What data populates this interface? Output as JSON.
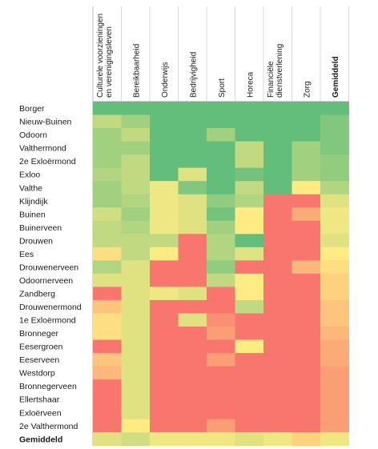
{
  "chart_data": {
    "type": "heatmap",
    "title": "",
    "columns": [
      [
        "Culturele voorzieningen",
        "en verenigingsleven"
      ],
      [
        "Bereikbaarheid"
      ],
      [
        "Onderwijs"
      ],
      [
        "Bedrijvigheid"
      ],
      [
        "Sport"
      ],
      [
        "Horeca"
      ],
      [
        "Financiële",
        "dienstverlening"
      ],
      [
        "Zorg"
      ],
      [
        "Gemiddeld"
      ]
    ],
    "rows": [
      "Borger",
      "Nieuw-Buinen",
      "Odoorn",
      "Valthermond",
      "2e Exloërmond",
      "Exloo",
      "Valthe",
      "Klijndijk",
      "Buinen",
      "Buinerveen",
      "Drouwen",
      "Ees",
      "Drouwenerveen",
      "Odoornerveen",
      "Zandberg",
      "Drouwenermond",
      "1e Exloërmond",
      "Bronneger",
      "Eesergroen",
      "Eeserveen",
      "Westdorp",
      "Bronnegerveen",
      "Ellertshaar",
      "Exloërveen",
      "2e Valthermond",
      "Gemiddeld"
    ],
    "bold_column": "Gemiddeld",
    "bold_row": "Gemiddeld",
    "color_scale": {
      "low": "#F8696B",
      "mid": "#FFEB84",
      "high": "#63BE7B",
      "range": [
        0,
        10
      ]
    },
    "values": [
      [
        10,
        10,
        10,
        10,
        10,
        10,
        10,
        10,
        10
      ],
      [
        7,
        8,
        10,
        10,
        10,
        10,
        10,
        10,
        9
      ],
      [
        8,
        7,
        10,
        10,
        8,
        10,
        10,
        10,
        9
      ],
      [
        8,
        8,
        10,
        10,
        10,
        7,
        10,
        8,
        9
      ],
      [
        8,
        7,
        10,
        10,
        10,
        7,
        10,
        8,
        8.5
      ],
      [
        7.5,
        7,
        10,
        6,
        10,
        9.5,
        10,
        8,
        8.5
      ],
      [
        8,
        7,
        5.5,
        9,
        10,
        7,
        10,
        5,
        7.5
      ],
      [
        8,
        7.5,
        5.5,
        6,
        8.5,
        7.5,
        0.5,
        0.5,
        6
      ],
      [
        6.5,
        8,
        5.5,
        6,
        9.5,
        5,
        0.5,
        2.5,
        5.5
      ],
      [
        7,
        7.5,
        5.5,
        6,
        8,
        5,
        0.5,
        0.5,
        5.5
      ],
      [
        7,
        7,
        7,
        0.5,
        7.5,
        10,
        0.5,
        0.5,
        6
      ],
      [
        4.5,
        7,
        5,
        0.5,
        7.5,
        6,
        0.5,
        0.5,
        5
      ],
      [
        7.5,
        6,
        0.5,
        0.5,
        8.5,
        0.5,
        0.5,
        3,
        4.5
      ],
      [
        6,
        6,
        0.5,
        0.5,
        7,
        5,
        0.5,
        0.5,
        4
      ],
      [
        0.5,
        6,
        5.5,
        6,
        0.5,
        5,
        0.5,
        0.5,
        4
      ],
      [
        3.5,
        6,
        0.5,
        0.5,
        0.5,
        7,
        0.5,
        0.5,
        3.5
      ],
      [
        4.5,
        6,
        0.5,
        6,
        1.5,
        0.5,
        0.5,
        0.5,
        3.5
      ],
      [
        4.5,
        6,
        0.5,
        0.5,
        2,
        0.5,
        0.5,
        0.5,
        3
      ],
      [
        0.5,
        6,
        0.5,
        0.5,
        0.5,
        5,
        0.5,
        0.5,
        2.5
      ],
      [
        3.5,
        6,
        0.5,
        0.5,
        2,
        0.5,
        0.5,
        0.5,
        2.5
      ],
      [
        3,
        6,
        0.5,
        0.5,
        0.5,
        0.5,
        0.5,
        0.5,
        2
      ],
      [
        0.5,
        6,
        0.5,
        0.5,
        0.5,
        0.5,
        0.5,
        0.5,
        2
      ],
      [
        0.5,
        6,
        0.5,
        0.5,
        0.5,
        0.5,
        0.5,
        0.5,
        2
      ],
      [
        0.5,
        6,
        0.5,
        0.5,
        0.5,
        0.5,
        0.5,
        0.5,
        2
      ],
      [
        0.5,
        5,
        0.5,
        0.5,
        2,
        0.5,
        0.5,
        0.5,
        2
      ],
      [
        6,
        6.5,
        5.5,
        5.5,
        5.5,
        6,
        5.5,
        4,
        5.5
      ]
    ]
  }
}
